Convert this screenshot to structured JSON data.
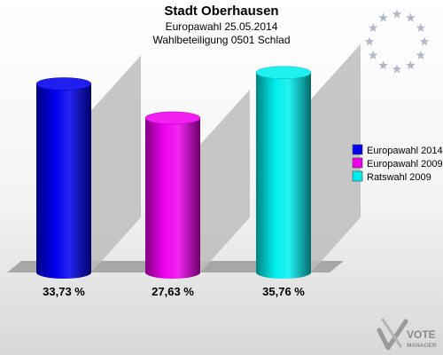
{
  "chart_data": {
    "type": "bar",
    "title": "Stadt Oberhausen",
    "subtitle_lines": [
      "Europawahl 25.05.2014",
      "Wahlbeteiligung 0501 Schlad"
    ],
    "categories": [
      "Europawahl 2014",
      "Europawahl 2009",
      "Ratswahl 2009"
    ],
    "values": [
      33.73,
      27.63,
      35.76
    ],
    "value_labels": [
      "33,73 %",
      "27,63 %",
      "35,76 %"
    ],
    "colors": [
      "#0000ee",
      "#ee00ee",
      "#00eeee"
    ],
    "legend": [
      "Europawahl 2014",
      "Europawahl 2009",
      "Ratswahl 2009"
    ],
    "legend_position": "right",
    "ylim": [
      0,
      40
    ],
    "xlabel": "",
    "ylabel": "",
    "grid": false
  },
  "branding": {
    "logo_line1": "VOTE",
    "logo_line2": "MANAGER",
    "emblem": "eu-stars-icon"
  }
}
